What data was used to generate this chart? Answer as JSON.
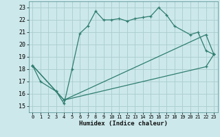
{
  "xlabel": "Humidex (Indice chaleur)",
  "xlim": [
    -0.5,
    23.5
  ],
  "ylim": [
    14.5,
    23.5
  ],
  "yticks": [
    15,
    16,
    17,
    18,
    19,
    20,
    21,
    22,
    23
  ],
  "xticks": [
    0,
    1,
    2,
    3,
    4,
    5,
    6,
    7,
    8,
    9,
    10,
    11,
    12,
    13,
    14,
    15,
    16,
    17,
    18,
    19,
    20,
    21,
    22,
    23
  ],
  "background_color": "#cce8ea",
  "grid_color": "#aacccc",
  "line_color": "#2e7d6e",
  "line1_x": [
    0,
    1,
    3,
    4,
    5,
    6,
    7,
    8,
    9,
    10,
    11,
    12,
    13,
    14,
    15,
    16,
    17,
    18,
    20,
    21,
    22,
    23
  ],
  "line1_y": [
    18.3,
    17.0,
    16.2,
    15.2,
    18.0,
    20.9,
    21.5,
    22.7,
    22.0,
    22.0,
    22.1,
    21.9,
    22.1,
    22.2,
    22.3,
    23.0,
    22.4,
    21.5,
    20.8,
    21.0,
    19.5,
    19.2
  ],
  "line2_x": [
    0,
    3,
    4,
    22,
    23
  ],
  "line2_y": [
    18.3,
    16.2,
    15.5,
    20.8,
    19.2
  ],
  "line3_x": [
    0,
    4,
    22,
    23
  ],
  "line3_y": [
    18.3,
    15.5,
    18.2,
    19.2
  ]
}
